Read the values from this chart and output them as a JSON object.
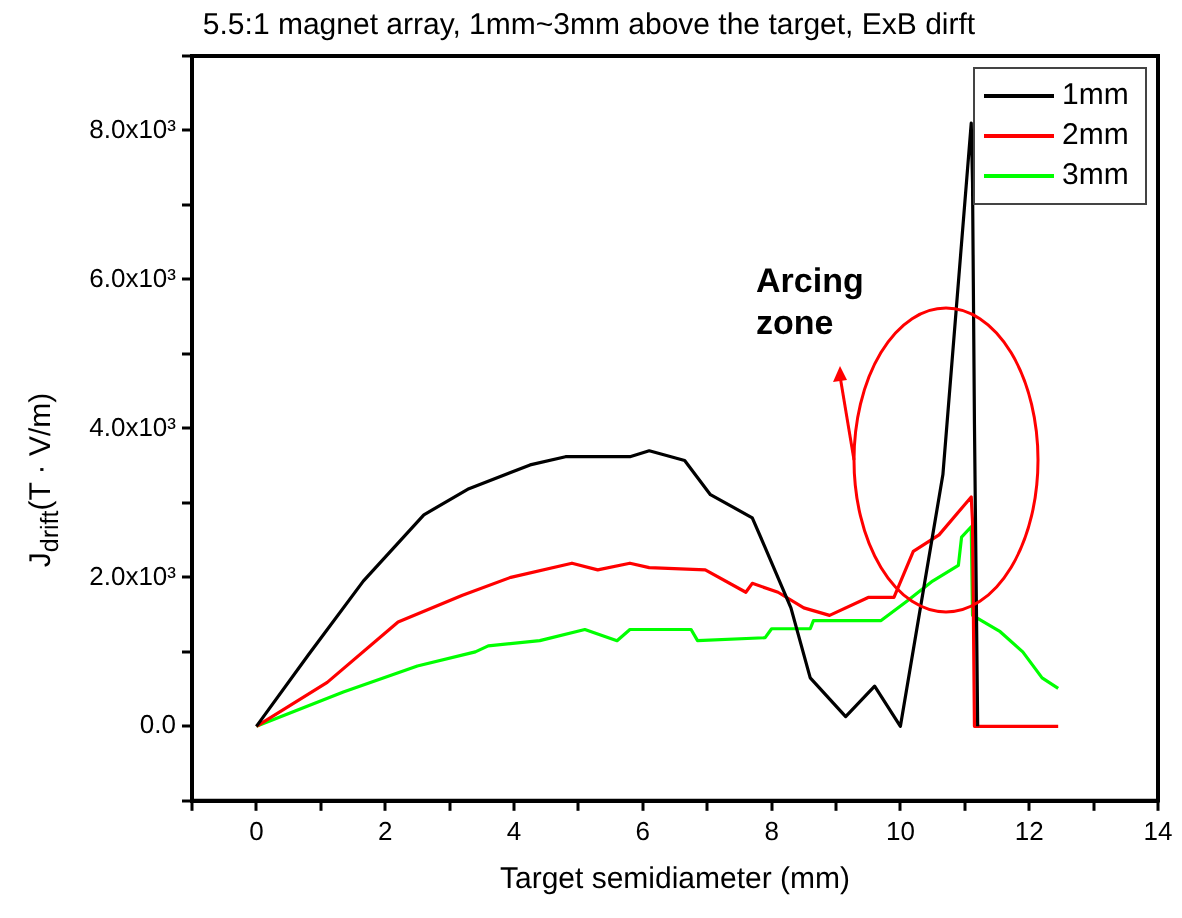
{
  "chart_data": {
    "type": "line",
    "title": "5.5:1 magnet array, 1mm~3mm above the target, ExB dirft",
    "xlabel": "Target semidiameter (mm)",
    "ylabel": "J$_{drift}$(T · V/m)",
    "annotations": [
      "Arcing zone"
    ],
    "xlim": [
      -1,
      14
    ],
    "xticks": [
      {
        "value": -1,
        "label": null
      },
      0,
      {
        "value": 1,
        "label": null
      },
      2,
      {
        "value": 3,
        "label": null
      },
      4,
      {
        "value": 5,
        "label": null
      },
      6,
      {
        "value": 7,
        "label": null
      },
      8,
      {
        "value": 9,
        "label": null
      },
      10,
      {
        "value": 11,
        "label": null
      },
      12,
      {
        "value": 13,
        "label": null
      },
      14
    ],
    "ylim": [
      -1000,
      9000
    ],
    "yticks": [
      {
        "value": -1000,
        "label": null
      },
      {
        "value": 0,
        "label": "0.0"
      },
      {
        "value": 1000,
        "label": null
      },
      {
        "value": 2000,
        "label": "2.0x10³"
      },
      {
        "value": 3000,
        "label": null
      },
      {
        "value": 4000,
        "label": "4.0x10³"
      },
      {
        "value": 5000,
        "label": null
      },
      {
        "value": 6000,
        "label": "6.0x10³"
      },
      {
        "value": 7000,
        "label": null
      },
      {
        "value": 8000,
        "label": "8.0x10³"
      },
      {
        "value": 9000,
        "label": null
      }
    ],
    "grid": false,
    "legend": "top right",
    "marker": "none",
    "line_style": "solid",
    "series": [
      {
        "name": "1mm",
        "color": "#000000",
        "x": [
          0,
          0.8,
          1.66,
          2.6,
          3.3,
          4.25,
          4.8,
          5.8,
          6.1,
          6.65,
          7.05,
          7.7,
          7.9,
          8.3,
          8.6,
          9.15,
          9.6,
          10.0,
          10.66,
          11.1,
          11.12,
          11.15,
          11.2
        ],
        "values": [
          0,
          950,
          1950,
          2840,
          3190,
          3510,
          3620,
          3620,
          3700,
          3570,
          3110,
          2800,
          2400,
          1590,
          650,
          130,
          540,
          0,
          3380,
          8100,
          7300,
          4050,
          0
        ]
      },
      {
        "name": "2mm",
        "color": "#ff0000",
        "x": [
          0,
          1.1,
          2.2,
          3.2,
          3.95,
          4.9,
          5.3,
          5.8,
          6.1,
          6.97,
          7.6,
          7.7,
          8.1,
          8.5,
          8.9,
          9.5,
          9.9,
          10.2,
          10.6,
          11.1,
          11.12,
          11.15,
          12.45
        ],
        "values": [
          0,
          590,
          1400,
          1760,
          2000,
          2190,
          2100,
          2190,
          2130,
          2100,
          1800,
          1920,
          1800,
          1590,
          1490,
          1730,
          1730,
          2350,
          2570,
          3080,
          2750,
          0,
          0
        ]
      },
      {
        "name": "3mm",
        "color": "#00ff00",
        "x": [
          0,
          1.35,
          2.5,
          3.4,
          3.6,
          4.4,
          5.1,
          5.6,
          5.8,
          6.75,
          6.85,
          7.9,
          8.0,
          8.6,
          8.65,
          9.7,
          10.1,
          10.5,
          10.9,
          10.95,
          11.1,
          11.12,
          11.55,
          11.9,
          12.2,
          12.45
        ],
        "values": [
          0,
          460,
          810,
          1000,
          1080,
          1150,
          1300,
          1150,
          1300,
          1300,
          1150,
          1190,
          1310,
          1310,
          1420,
          1420,
          1680,
          1950,
          2160,
          2540,
          2680,
          1490,
          1270,
          1000,
          650,
          510
        ]
      }
    ]
  }
}
